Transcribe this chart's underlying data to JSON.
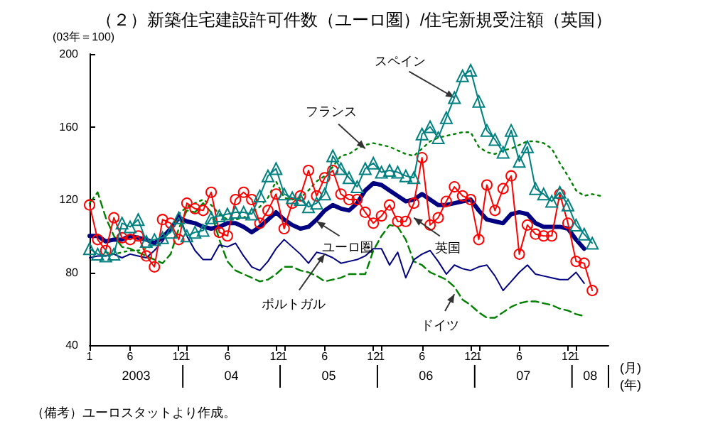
{
  "chart_data": {
    "type": "line",
    "title": "（２）新築住宅建設許可件数（ユーロ圏）/住宅新規受注額（英国）",
    "ylabel": "(03年＝100)",
    "xlabel": "(月)\n(年)",
    "x": [
      "2003-01",
      "2003-02",
      "2003-03",
      "2003-04",
      "2003-05",
      "2003-06",
      "2003-07",
      "2003-08",
      "2003-09",
      "2003-10",
      "2003-11",
      "2003-12",
      "2004-01",
      "2004-02",
      "2004-03",
      "2004-04",
      "2004-05",
      "2004-06",
      "2004-07",
      "2004-08",
      "2004-09",
      "2004-10",
      "2004-11",
      "2004-12",
      "2005-01",
      "2005-02",
      "2005-03",
      "2005-04",
      "2005-05",
      "2005-06",
      "2005-07",
      "2005-08",
      "2005-09",
      "2005-10",
      "2005-11",
      "2005-12",
      "2006-01",
      "2006-02",
      "2006-03",
      "2006-04",
      "2006-05",
      "2006-06",
      "2006-07",
      "2006-08",
      "2006-09",
      "2006-10",
      "2006-11",
      "2006-12",
      "2007-01",
      "2007-02",
      "2007-03",
      "2007-04",
      "2007-05",
      "2007-06",
      "2007-07",
      "2007-08",
      "2007-09",
      "2007-10",
      "2007-11",
      "2007-12",
      "2008-01",
      "2008-02",
      "2008-03",
      "2008-04"
    ],
    "xlim": [
      "2003-01",
      "2008-05"
    ],
    "xticks": [
      {
        "value": "2003-01",
        "label": "1"
      },
      {
        "value": "2003-06",
        "label": "6"
      },
      {
        "value": "2003-12",
        "label": "12"
      },
      {
        "value": "2004-01",
        "label": "1"
      },
      {
        "value": "2004-06",
        "label": "6"
      },
      {
        "value": "2004-12",
        "label": "12"
      },
      {
        "value": "2005-01",
        "label": "1"
      },
      {
        "value": "2005-06",
        "label": "6"
      },
      {
        "value": "2005-12",
        "label": "12"
      },
      {
        "value": "2006-01",
        "label": "1"
      },
      {
        "value": "2006-06",
        "label": "6"
      },
      {
        "value": "2006-12",
        "label": "12"
      },
      {
        "value": "2007-01",
        "label": "1"
      },
      {
        "value": "2007-06",
        "label": "6"
      },
      {
        "value": "2007-12",
        "label": "12"
      },
      {
        "value": "2008-01",
        "label": "1"
      }
    ],
    "ylim": [
      40,
      200
    ],
    "yticks": [
      40,
      80,
      120,
      160,
      200
    ],
    "grid": false,
    "series": [
      {
        "color": "#008000",
        "line_style": "dotted",
        "marker": "none",
        "values": [
          null,
          null,
          91,
          90,
          91,
          92,
          92,
          93,
          95,
          99,
          104,
          112,
          116,
          118,
          120,
          117,
          112,
          109,
          109,
          110,
          113,
          116,
          121,
          130,
          121,
          120,
          121,
          125,
          130,
          133,
          138,
          144,
          145,
          148,
          150,
          151,
          150,
          149,
          147,
          145,
          144,
          148,
          152,
          154,
          155,
          156,
          157,
          157,
          149,
          146,
          145,
          147,
          148,
          150,
          152,
          152,
          151,
          148,
          140,
          133,
          125,
          122,
          123,
          122
        ]
      },
      {
        "color": "#008000",
        "line_style": "dashed",
        "marker": "none",
        "values": [
          118,
          124,
          110,
          100,
          94,
          93,
          91,
          89,
          87,
          85,
          90,
          104,
          114,
          113,
          118,
          113,
          98,
          86,
          81,
          79,
          77,
          75,
          76,
          79,
          83,
          83,
          81,
          80,
          78,
          75,
          76,
          77,
          79,
          79,
          79,
          92,
          100,
          106,
          105,
          98,
          86,
          84,
          80,
          78,
          76,
          72,
          65,
          62,
          58,
          55,
          55,
          58,
          61,
          63,
          64,
          64,
          63,
          62,
          60,
          59,
          57,
          56,
          null,
          null
        ]
      },
      {
        "color": "#000080",
        "line_style": "solid",
        "marker": "none",
        "values": [
          88,
          89,
          89,
          90,
          88,
          90,
          89,
          88,
          92,
          97,
          104,
          112,
          100,
          92,
          87,
          87,
          95,
          94,
          96,
          89,
          83,
          81,
          86,
          93,
          98,
          94,
          90,
          85,
          91,
          90,
          88,
          85,
          86,
          87,
          89,
          93,
          93,
          84,
          91,
          77,
          87,
          90,
          92,
          86,
          79,
          84,
          82,
          81,
          83,
          84,
          78,
          70,
          75,
          80,
          84,
          79,
          78,
          77,
          76,
          76,
          80,
          74,
          null,
          null
        ]
      },
      {
        "color": "#008080",
        "line_style": "solid",
        "marker": "triangle",
        "values": [
          93,
          90,
          89,
          90,
          107,
          105,
          109,
          97,
          98,
          99,
          102,
          110,
          100,
          102,
          103,
          110,
          111,
          112,
          113,
          113,
          112,
          122,
          133,
          137,
          123,
          121,
          120,
          116,
          118,
          123,
          144,
          137,
          132,
          127,
          137,
          140,
          135,
          136,
          135,
          133,
          132,
          156,
          160,
          154,
          165,
          176,
          188,
          191,
          174,
          158,
          153,
          146,
          158,
          141,
          149,
          126,
          123,
          119,
          124,
          117,
          106,
          101,
          96,
          null
        ]
      },
      {
        "color": "#ff0000",
        "line_style": "solid",
        "marker": "circle",
        "values": [
          117,
          98,
          92,
          110,
          99,
          98,
          100,
          89,
          83,
          109,
          107,
          98,
          118,
          115,
          114,
          124,
          102,
          100,
          120,
          124,
          120,
          107,
          114,
          123,
          104,
          118,
          122,
          136,
          122,
          132,
          136,
          123,
          120,
          120,
          113,
          107,
          111,
          117,
          108,
          108,
          118,
          143,
          106,
          110,
          119,
          127,
          122,
          120,
          98,
          128,
          114,
          126,
          133,
          90,
          106,
          101,
          100,
          100,
          123,
          107,
          86,
          85,
          70,
          null
        ]
      },
      {
        "color": "#000080",
        "line_style": "solid",
        "marker": "none",
        "values": [
          100,
          100,
          97,
          98,
          98,
          100,
          99,
          98,
          96,
          99,
          104,
          110,
          108,
          107,
          105,
          104,
          105,
          107,
          107,
          105,
          102,
          105,
          109,
          113,
          109,
          106,
          104,
          105,
          109,
          114,
          117,
          115,
          114,
          118,
          125,
          129,
          128,
          125,
          122,
          119,
          120,
          123,
          120,
          117,
          117,
          118,
          119,
          120,
          114,
          109,
          108,
          107,
          112,
          113,
          112,
          107,
          105,
          105,
          105,
          104,
          98,
          93,
          null,
          null
        ]
      }
    ],
    "annotations": [
      {
        "text": "スペイン",
        "x": "2006-10",
        "y": 176
      },
      {
        "text": "フランス",
        "x": "2005-11",
        "y": 148
      },
      {
        "text": "ユーロ圏",
        "x": "2005-05",
        "y": 108
      },
      {
        "text": "英国",
        "x": "2006-05",
        "y": 110
      },
      {
        "text": "ポルトガル",
        "x": "2005-06",
        "y": 90
      },
      {
        "text": "ドイツ",
        "x": "2006-10",
        "y": 68
      },
      "2003",
      "04",
      "05",
      "06",
      "07",
      "08",
      "（備考）ユーロスタットより作成。"
    ]
  }
}
